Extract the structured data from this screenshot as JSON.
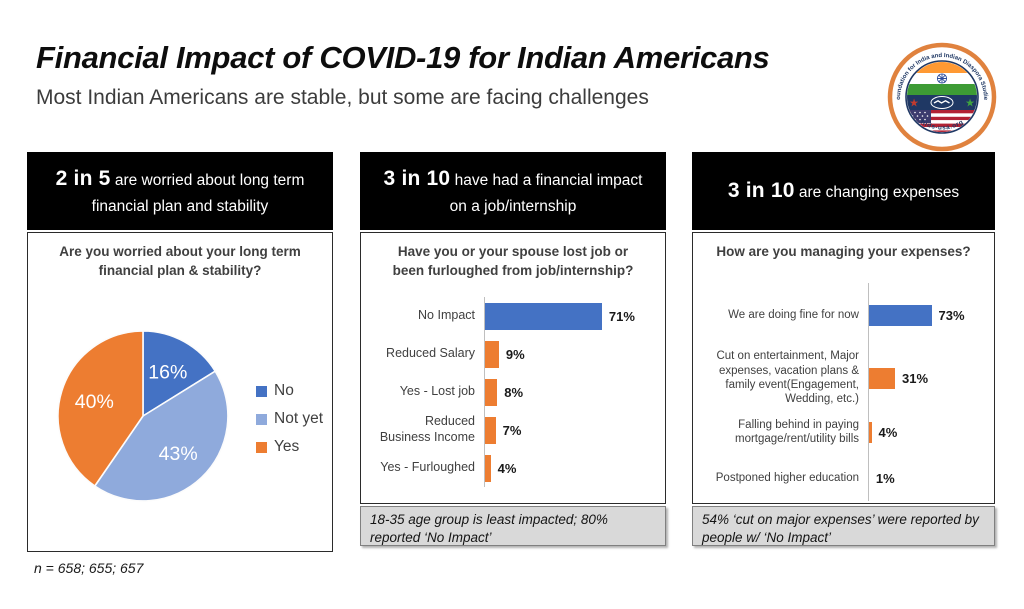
{
  "header": {
    "title": "Financial Impact of COVID-19 for Indian Americans",
    "subtitle": "Most Indian Americans are stable, but some are facing challenges"
  },
  "logo": {
    "ring_text_top": "Foundation for India and Indian Diaspora Studies",
    "ring_text_bottom": "fiids-usa.org",
    "colors": {
      "ring_orange": "#E0823E",
      "navy": "#1F3864",
      "saffron": "#FF9933",
      "india_green": "#3D9B35",
      "chakra_blue": "#2E4C9B",
      "us_red": "#B22234",
      "us_blue": "#3C3B6E"
    }
  },
  "footnote": "n = 658; 655; 657",
  "panels": [
    {
      "stat": "2 in 5",
      "headline": " are worried about long term financial plan and stability",
      "question": "Are you worried about your long term financial plan & stability?"
    },
    {
      "stat": "3 in 10",
      "headline": " have had a financial impact on a job/internship",
      "question": "Have you or your spouse lost job or been furloughed from job/internship?",
      "note": "18-35 age group is least impacted; 80% reported ‘No Impact’"
    },
    {
      "stat": "3 in 10",
      "headline": " are changing expenses",
      "question": "How are you managing your expenses?",
      "note": "54%  ‘cut on major expenses’ were reported by people w/ ‘No Impact’"
    }
  ],
  "chart_data": [
    {
      "type": "pie",
      "title": "Are you worried about your long term financial plan & stability?",
      "labels": [
        "No",
        "Not yet",
        "Yes"
      ],
      "values": [
        16,
        43,
        40
      ],
      "value_labels": [
        "16%",
        "43%",
        "40%"
      ],
      "colors": [
        "#4472C4",
        "#8FAADC",
        "#ED7D31"
      ],
      "label_color": "#ffffff",
      "start_angle_deg": 0,
      "direction": "clockwise",
      "legend_position": "right"
    },
    {
      "type": "bar",
      "orientation": "horizontal",
      "title": "Have you or your spouse lost job or been furloughed from job/internship?",
      "categories": [
        "No Impact",
        "Reduced Salary",
        "Yes - Lost job",
        "Reduced Business Income",
        "Yes - Furloughed"
      ],
      "values": [
        71,
        9,
        8,
        7,
        4
      ],
      "value_labels": [
        "71%",
        "9%",
        "8%",
        "7%",
        "4%"
      ],
      "bar_colors": [
        "#4472C4",
        "#ED7D31",
        "#ED7D31",
        "#ED7D31",
        "#ED7D31"
      ],
      "xlim": [
        0,
        100
      ],
      "grid": false
    },
    {
      "type": "bar",
      "orientation": "horizontal",
      "title": "How are you managing your expenses?",
      "categories": [
        "We are doing fine for now",
        "Cut on entertainment, Major expenses, vacation plans & family event(Engagement, Wedding, etc.)",
        "Falling behind in paying mortgage/rent/utility bills",
        "Postponed higher education"
      ],
      "values": [
        73,
        31,
        4,
        1
      ],
      "value_labels": [
        "73%",
        "31%",
        "4%",
        "1%"
      ],
      "bar_colors": [
        "#4472C4",
        "#ED7D31",
        "#ED7D31",
        "#ED7D31"
      ],
      "xlim": [
        0,
        100
      ],
      "grid": false
    }
  ]
}
